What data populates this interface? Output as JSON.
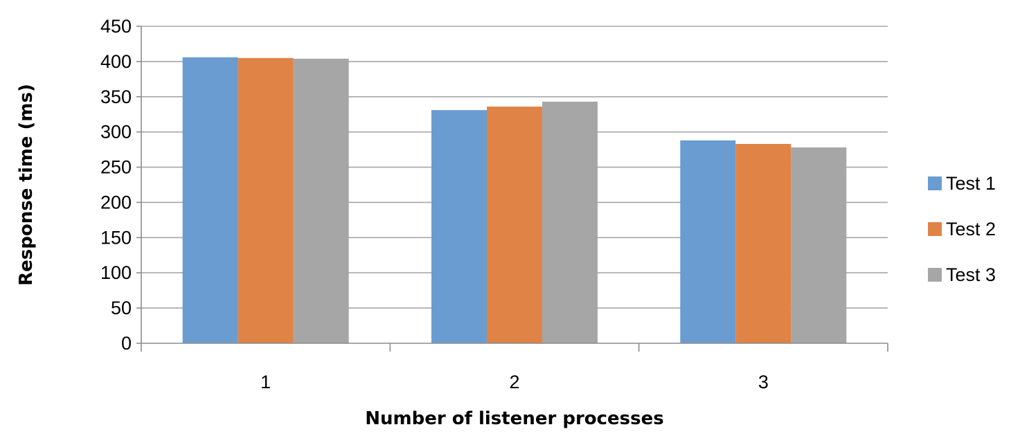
{
  "chart_data": {
    "type": "bar",
    "title": "",
    "xlabel": "Number of listener processes",
    "ylabel": "Response time (ms)",
    "categories": [
      "1",
      "2",
      "3"
    ],
    "series": [
      {
        "name": "Test 1",
        "color": "#6a9cd1",
        "values": [
          406,
          331,
          288
        ]
      },
      {
        "name": "Test 2",
        "color": "#e08346",
        "values": [
          405,
          336,
          283
        ]
      },
      {
        "name": "Test 3",
        "color": "#a6a6a6",
        "values": [
          404,
          343,
          278
        ]
      }
    ],
    "ylim": [
      0,
      450
    ],
    "yticks": [
      "0",
      "50",
      "100",
      "150",
      "200",
      "250",
      "300",
      "350",
      "400",
      "450"
    ],
    "grid": true,
    "legend_position": "right"
  }
}
